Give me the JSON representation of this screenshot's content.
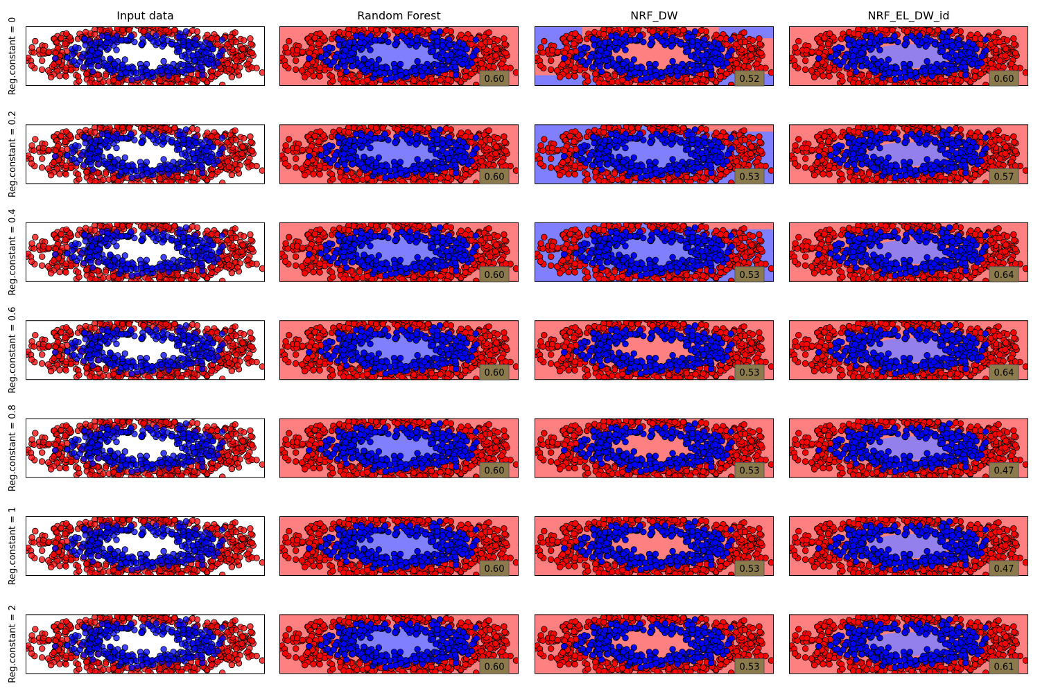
{
  "colors": {
    "background": "#ffffff",
    "region_red": "#ff8080",
    "region_blue": "#8080ff",
    "point_red": "#ff0000",
    "point_blue": "#0000ff",
    "score_box": "#8a7a4c"
  },
  "chart_data": {
    "type": "scatter",
    "layout": "grid",
    "dataset": "two concentric noisy rings (inner ring blue, outer ring red), overlapping",
    "columns": [
      "Input data",
      "Random Forest",
      "NRF_DW",
      "NRF_EL_DW_id"
    ],
    "rows": [
      {
        "label": "Reg.constant = 0",
        "scores": [
          "0.60",
          "0.52",
          "0.60"
        ],
        "nrf_dw_background": "mixed"
      },
      {
        "label": "Reg.constant = 0.2",
        "scores": [
          "0.60",
          "0.53",
          "0.57"
        ],
        "nrf_dw_background": "blue"
      },
      {
        "label": "Reg.constant = 0.4",
        "scores": [
          "0.60",
          "0.53",
          "0.64"
        ],
        "nrf_dw_background": "blue"
      },
      {
        "label": "Reg.constant = 0.6",
        "scores": [
          "0.60",
          "0.53",
          "0.64"
        ],
        "nrf_dw_background": "red"
      },
      {
        "label": "Reg.constant = 0.8",
        "scores": [
          "0.60",
          "0.53",
          "0.47"
        ],
        "nrf_dw_background": "red"
      },
      {
        "label": "Reg.constant = 1",
        "scores": [
          "0.60",
          "0.53",
          "0.47"
        ],
        "nrf_dw_background": "red"
      },
      {
        "label": "Reg.constant = 2",
        "scores": [
          "0.60",
          "0.53",
          "0.61"
        ],
        "nrf_dw_background": "red"
      }
    ],
    "score_location": "bottom-right",
    "axes_ticks": false,
    "grid": false,
    "legend": "none"
  }
}
